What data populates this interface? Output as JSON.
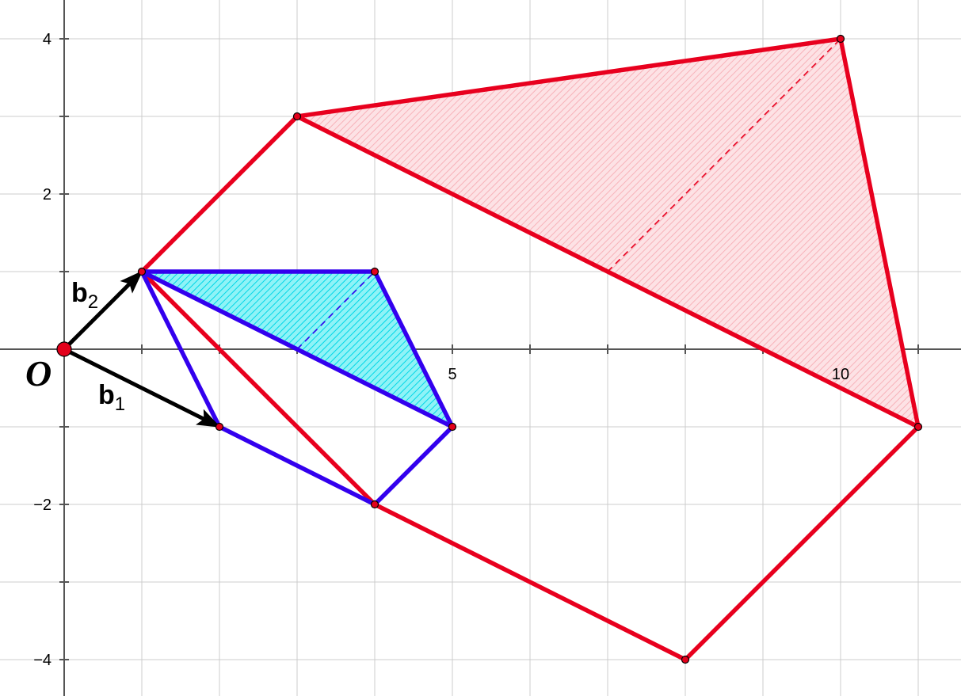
{
  "axes": {
    "x_ticks": [
      {
        "value": 5,
        "label": "5"
      },
      {
        "value": 10,
        "label": "10"
      }
    ],
    "y_ticks": [
      {
        "value": 4,
        "label": "4"
      },
      {
        "value": 2,
        "label": "2"
      },
      {
        "value": -2,
        "label": "−2"
      },
      {
        "value": -4,
        "label": "−4"
      }
    ],
    "x_range": [
      -0.82,
      11.55
    ],
    "y_range": [
      -4.45,
      4.5
    ],
    "grid": true
  },
  "origin": {
    "label": "O",
    "point": [
      0,
      0
    ],
    "color": "#e3001b"
  },
  "vectors": [
    {
      "name": "b",
      "subscript": "2",
      "from": [
        0,
        0
      ],
      "to": [
        1,
        1
      ],
      "color": "#000000"
    },
    {
      "name": "b",
      "subscript": "1",
      "from": [
        0,
        0
      ],
      "to": [
        2,
        -1
      ],
      "color": "#000000"
    }
  ],
  "polygons": {
    "small": {
      "color": "#3300ee",
      "fill": "#00e5f0",
      "outline": [
        [
          1,
          1
        ],
        [
          4,
          1
        ],
        [
          5,
          -1
        ],
        [
          4,
          -2
        ],
        [
          2,
          -1
        ]
      ],
      "triangle": [
        [
          1,
          1
        ],
        [
          4,
          1
        ],
        [
          5,
          -1
        ]
      ],
      "extra_edges": [
        [
          [
            1,
            1
          ],
          [
            5,
            -1
          ]
        ]
      ],
      "dashed": [
        [
          3,
          0
        ],
        [
          4,
          1
        ]
      ]
    },
    "large": {
      "color": "#e8001e",
      "fill": "#f7b7bd",
      "outline": [
        [
          1,
          1
        ],
        [
          3,
          3
        ],
        [
          10,
          4
        ],
        [
          11,
          -1
        ],
        [
          8,
          -4
        ],
        [
          4,
          -2
        ]
      ],
      "triangle": [
        [
          3,
          3
        ],
        [
          10,
          4
        ],
        [
          11,
          -1
        ]
      ],
      "extra_edges": [
        [
          [
            3,
            3
          ],
          [
            11,
            -1
          ]
        ]
      ],
      "dashed": [
        [
          7,
          1
        ],
        [
          10,
          4
        ]
      ]
    }
  },
  "points": [
    [
      1,
      1
    ],
    [
      4,
      1
    ],
    [
      5,
      -1
    ],
    [
      4,
      -2
    ],
    [
      2,
      -1
    ],
    [
      3,
      3
    ],
    [
      10,
      4
    ],
    [
      11,
      -1
    ],
    [
      8,
      -4
    ]
  ],
  "colors": {
    "grid": "#cccccc",
    "axis": "#555555",
    "point_fill": "#e3001b"
  }
}
